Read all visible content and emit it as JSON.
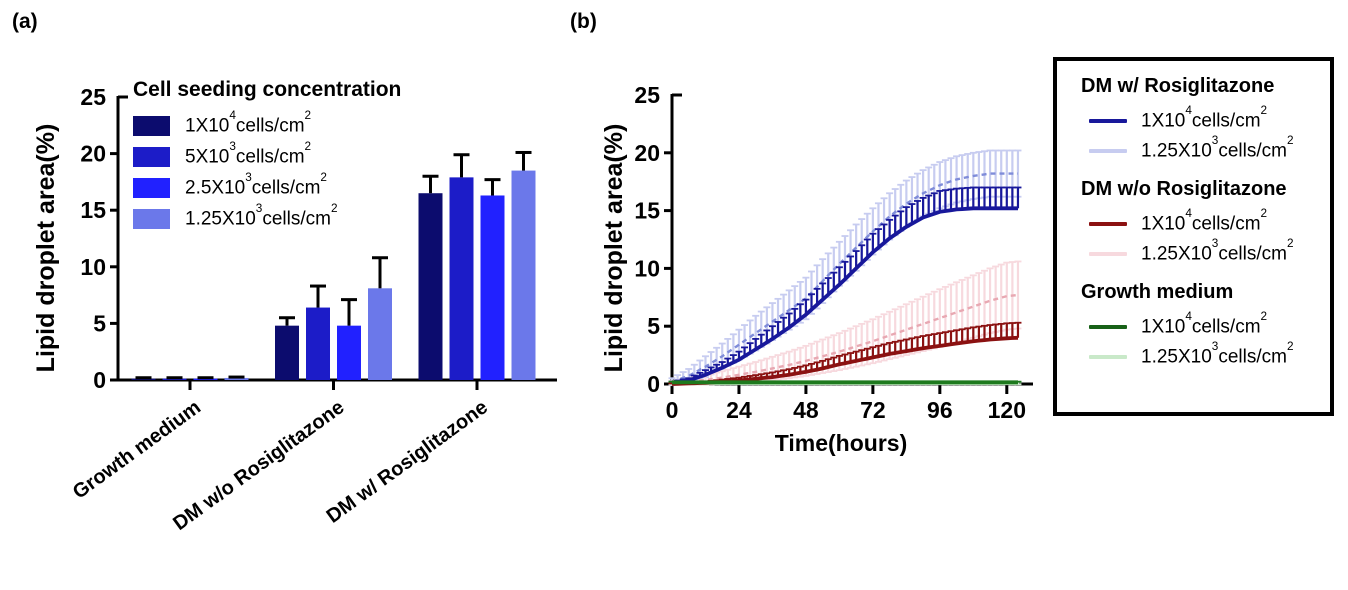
{
  "figure": {
    "panel_a_label": "(a)",
    "panel_b_label": "(b)",
    "background": "#ffffff"
  },
  "chart_data": [
    {
      "id": "a",
      "type": "bar",
      "title": "",
      "ylabel": "Lipid droplet area(%)",
      "ylim": [
        0,
        25
      ],
      "yticks": [
        0,
        5,
        10,
        15,
        20,
        25
      ],
      "grid": false,
      "legend_title": "Cell seeding concentration",
      "legend_position": "upper-left-inside",
      "categories": [
        "Growth medium",
        "DM w/o Rosiglitazone",
        "DM w/ Rosiglitazone"
      ],
      "series": [
        {
          "name": {
            "base": "1X10",
            "exp": "4",
            "unit": "cells/cm",
            "unit_exp": "2"
          },
          "color": "#0C0C6E",
          "values": [
            0.12,
            4.8,
            16.5
          ],
          "errors": [
            0.08,
            0.7,
            1.5
          ]
        },
        {
          "name": {
            "base": "5X10",
            "exp": "3",
            "unit": "cells/cm",
            "unit_exp": "2"
          },
          "color": "#1C1CC8",
          "values": [
            0.12,
            6.4,
            17.9
          ],
          "errors": [
            0.08,
            1.9,
            2.0
          ]
        },
        {
          "name": {
            "base": "2.5X10",
            "exp": "3",
            "unit": "cells/cm",
            "unit_exp": "2"
          },
          "color": "#2121FF",
          "values": [
            0.12,
            4.8,
            16.3
          ],
          "errors": [
            0.08,
            2.3,
            1.4
          ]
        },
        {
          "name": {
            "base": "1.25X10",
            "exp": "3",
            "unit": "cells/cm",
            "unit_exp": "2"
          },
          "color": "#6B78EA",
          "values": [
            0.18,
            8.1,
            18.5
          ],
          "errors": [
            0.08,
            2.7,
            1.6
          ]
        }
      ]
    },
    {
      "id": "b",
      "type": "line",
      "title": "",
      "xlabel": "Time(hours)",
      "ylabel": "Lipid droplet area(%)",
      "xlim": [
        0,
        126
      ],
      "ylim": [
        0,
        25
      ],
      "xticks": [
        0,
        24,
        48,
        72,
        96,
        120
      ],
      "yticks": [
        0,
        5,
        10,
        15,
        20,
        25
      ],
      "grid": false,
      "x": [
        0,
        6,
        12,
        18,
        24,
        30,
        36,
        42,
        48,
        54,
        60,
        66,
        72,
        78,
        84,
        90,
        96,
        102,
        108,
        114,
        120,
        124
      ],
      "series": [
        {
          "key": "dm-rosi-1.25e3",
          "group": "DM w/ Rosiglitazone",
          "name": {
            "base": "1.25X10",
            "exp": "3",
            "unit": "cells/cm",
            "unit_exp": "2"
          },
          "line_color": "#7F8CD9",
          "bar_color": "#C7CCF0",
          "bars": "both",
          "dashed": true,
          "values": [
            0.2,
            0.7,
            1.5,
            2.4,
            3.4,
            4.4,
            5.4,
            6.4,
            7.4,
            8.9,
            10.4,
            11.8,
            13.2,
            14.5,
            15.6,
            16.5,
            17.2,
            17.7,
            18.0,
            18.2,
            18.2,
            18.2
          ],
          "errors": [
            0.3,
            0.6,
            0.9,
            1.1,
            1.3,
            1.5,
            1.6,
            1.7,
            1.8,
            1.9,
            1.9,
            2.0,
            2.0,
            2.0,
            2.0,
            2.0,
            2.0,
            2.0,
            2.0,
            2.0,
            2.0,
            2.0
          ]
        },
        {
          "key": "dm-norosi-1.25e3",
          "group": "DM w/o Rosiglitazone",
          "name": {
            "base": "1.25X10",
            "exp": "3",
            "unit": "cells/cm",
            "unit_exp": "2"
          },
          "line_color": "#E8A8B2",
          "bar_color": "#F7D9DE",
          "bars": "both",
          "dashed": true,
          "values": [
            0.1,
            0.2,
            0.35,
            0.55,
            0.8,
            1.05,
            1.35,
            1.65,
            2.0,
            2.4,
            2.8,
            3.25,
            3.7,
            4.2,
            4.7,
            5.2,
            5.7,
            6.2,
            6.7,
            7.2,
            7.6,
            7.7
          ],
          "errors": [
            0.15,
            0.25,
            0.4,
            0.55,
            0.7,
            0.85,
            1.0,
            1.15,
            1.3,
            1.45,
            1.6,
            1.75,
            1.9,
            2.05,
            2.2,
            2.35,
            2.5,
            2.6,
            2.7,
            2.8,
            2.9,
            2.9
          ]
        },
        {
          "key": "growth-1.25e3",
          "group": "Growth medium",
          "name": {
            "base": "1.25X10",
            "exp": "3",
            "unit": "cells/cm",
            "unit_exp": "2"
          },
          "line_color": "#6FCB6F",
          "bar_color": "#CDEBCD",
          "bars": "both",
          "dashed": false,
          "values": [
            0.08,
            0.08,
            0.08,
            0.08,
            0.08,
            0.08,
            0.08,
            0.08,
            0.08,
            0.08,
            0.08,
            0.08,
            0.08,
            0.08,
            0.08,
            0.08,
            0.08,
            0.08,
            0.08,
            0.08,
            0.08,
            0.08
          ],
          "errors": [
            0.1,
            0.1,
            0.1,
            0.1,
            0.1,
            0.1,
            0.1,
            0.1,
            0.1,
            0.1,
            0.1,
            0.1,
            0.1,
            0.1,
            0.1,
            0.1,
            0.1,
            0.1,
            0.1,
            0.1,
            0.1,
            0.1
          ]
        },
        {
          "key": "dm-rosi-1e4",
          "group": "DM w/ Rosiglitazone",
          "name": {
            "base": "1X10",
            "exp": "4",
            "unit": "cells/cm",
            "unit_exp": "2"
          },
          "line_color": "#18189B",
          "bar_color": "#18189B",
          "bars": "up",
          "dashed": false,
          "values": [
            0.1,
            0.3,
            0.8,
            1.4,
            2.1,
            3.0,
            3.9,
            4.9,
            6.0,
            7.3,
            8.6,
            10.0,
            11.4,
            12.6,
            13.6,
            14.4,
            14.9,
            15.1,
            15.2,
            15.2,
            15.2,
            15.2
          ],
          "errors": [
            0.1,
            0.2,
            0.4,
            0.5,
            0.7,
            0.9,
            1.1,
            1.2,
            1.3,
            1.4,
            1.5,
            1.5,
            1.6,
            1.6,
            1.7,
            1.7,
            1.8,
            1.8,
            1.8,
            1.8,
            1.8,
            1.8
          ]
        },
        {
          "key": "dm-norosi-1e4",
          "group": "DM w/o Rosiglitazone",
          "name": {
            "base": "1X10",
            "exp": "4",
            "unit": "cells/cm",
            "unit_exp": "2"
          },
          "line_color": "#8B1111",
          "bar_color": "#8B1111",
          "bars": "up",
          "dashed": false,
          "values": [
            0.0,
            0.05,
            0.1,
            0.2,
            0.3,
            0.45,
            0.6,
            0.8,
            1.05,
            1.35,
            1.7,
            2.0,
            2.3,
            2.6,
            2.85,
            3.1,
            3.3,
            3.5,
            3.7,
            3.85,
            3.95,
            4.0
          ],
          "errors": [
            0.05,
            0.08,
            0.12,
            0.18,
            0.25,
            0.32,
            0.4,
            0.48,
            0.56,
            0.65,
            0.73,
            0.8,
            0.88,
            0.95,
            1.0,
            1.05,
            1.1,
            1.15,
            1.2,
            1.25,
            1.3,
            1.3
          ]
        },
        {
          "key": "growth-1e4",
          "group": "Growth medium",
          "name": {
            "base": "1X10",
            "exp": "4",
            "unit": "cells/cm",
            "unit_exp": "2"
          },
          "line_color": "#1E7A1E",
          "bar_color": "#1E7A1E",
          "bars": "up",
          "dashed": false,
          "values": [
            0.15,
            0.15,
            0.15,
            0.15,
            0.15,
            0.15,
            0.15,
            0.15,
            0.15,
            0.15,
            0.15,
            0.15,
            0.15,
            0.15,
            0.15,
            0.15,
            0.15,
            0.15,
            0.15,
            0.15,
            0.15,
            0.15
          ],
          "errors": [
            0.05,
            0.05,
            0.05,
            0.05,
            0.05,
            0.05,
            0.05,
            0.05,
            0.05,
            0.05,
            0.05,
            0.05,
            0.05,
            0.05,
            0.05,
            0.05,
            0.05,
            0.05,
            0.05,
            0.05,
            0.05,
            0.05
          ]
        }
      ]
    }
  ],
  "legend_b": {
    "groups": [
      {
        "title": "DM w/ Rosiglitazone",
        "items": [
          {
            "label": {
              "base": "1X10",
              "exp": "4",
              "unit": "cells/cm",
              "unit_exp": "2"
            },
            "color": "#18189B"
          },
          {
            "label": {
              "base": "1.25X10",
              "exp": "3",
              "unit": "cells/cm",
              "unit_exp": "2"
            },
            "color": "#C7CCF0"
          }
        ]
      },
      {
        "title": "DM w/o Rosiglitazone",
        "items": [
          {
            "label": {
              "base": "1X10",
              "exp": "4",
              "unit": "cells/cm",
              "unit_exp": "2"
            },
            "color": "#8B1111"
          },
          {
            "label": {
              "base": "1.25X10",
              "exp": "3",
              "unit": "cells/cm",
              "unit_exp": "2"
            },
            "color": "#F7D9DE"
          }
        ]
      },
      {
        "title": "Growth medium",
        "items": [
          {
            "label": {
              "base": "1X10",
              "exp": "4",
              "unit": "cells/cm",
              "unit_exp": "2"
            },
            "color": "#176117"
          },
          {
            "label": {
              "base": "1.25X10",
              "exp": "3",
              "unit": "cells/cm",
              "unit_exp": "2"
            },
            "color": "#C9E9C9"
          }
        ]
      }
    ]
  }
}
